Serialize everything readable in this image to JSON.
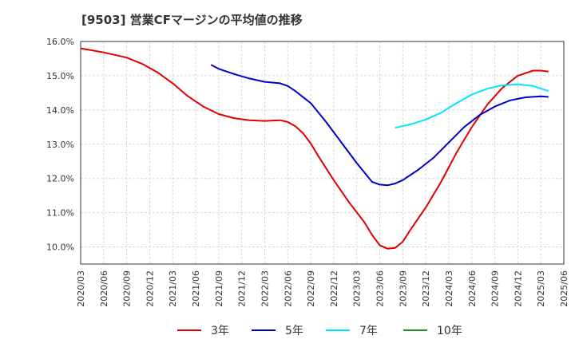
{
  "chart_data": {
    "type": "line",
    "title": "[9503]  営業CFマージンの平均値の推移",
    "xlabel": "",
    "ylabel": "",
    "ylim": [
      9.5,
      16.0
    ],
    "y_ticks": [
      "10.0%",
      "11.0%",
      "12.0%",
      "13.0%",
      "14.0%",
      "15.0%",
      "16.0%"
    ],
    "y_tick_values": [
      10,
      11,
      12,
      13,
      14,
      15,
      16
    ],
    "x_ticks": [
      "2020/03",
      "2020/06",
      "2020/09",
      "2020/12",
      "2021/03",
      "2021/06",
      "2021/09",
      "2021/12",
      "2022/03",
      "2022/06",
      "2022/09",
      "2022/12",
      "2023/03",
      "2023/06",
      "2023/09",
      "2023/12",
      "2024/03",
      "2024/06",
      "2024/09",
      "2024/12",
      "2025/03",
      "2025/06"
    ],
    "x_tick_values": [
      0,
      3,
      6,
      9,
      12,
      15,
      18,
      21,
      24,
      27,
      30,
      33,
      36,
      39,
      42,
      45,
      48,
      51,
      54,
      57,
      60,
      63
    ],
    "grid": true,
    "legend_position": "bottom",
    "series": [
      {
        "name": "3年",
        "color": "#e00000",
        "points": [
          [
            0,
            15.8
          ],
          [
            3,
            15.68
          ],
          [
            6,
            15.53
          ],
          [
            8,
            15.35
          ],
          [
            10,
            15.1
          ],
          [
            12,
            14.78
          ],
          [
            14,
            14.4
          ],
          [
            16,
            14.1
          ],
          [
            18,
            13.88
          ],
          [
            20,
            13.76
          ],
          [
            22,
            13.7
          ],
          [
            24,
            13.68
          ],
          [
            26,
            13.7
          ],
          [
            27,
            13.65
          ],
          [
            28,
            13.52
          ],
          [
            29,
            13.32
          ],
          [
            30,
            13.02
          ],
          [
            31,
            12.65
          ],
          [
            33,
            11.95
          ],
          [
            35,
            11.3
          ],
          [
            37,
            10.72
          ],
          [
            38,
            10.35
          ],
          [
            39,
            10.05
          ],
          [
            40,
            9.95
          ],
          [
            41,
            9.97
          ],
          [
            42,
            10.15
          ],
          [
            43,
            10.5
          ],
          [
            45,
            11.15
          ],
          [
            47,
            11.9
          ],
          [
            49,
            12.75
          ],
          [
            51,
            13.5
          ],
          [
            53,
            14.15
          ],
          [
            55,
            14.65
          ],
          [
            57,
            15.0
          ],
          [
            59,
            15.15
          ],
          [
            60,
            15.15
          ],
          [
            61,
            15.12
          ]
        ]
      },
      {
        "name": "5年",
        "color": "#0000cc",
        "points": [
          [
            17,
            15.32
          ],
          [
            18,
            15.2
          ],
          [
            20,
            15.05
          ],
          [
            22,
            14.92
          ],
          [
            24,
            14.82
          ],
          [
            26,
            14.78
          ],
          [
            27,
            14.7
          ],
          [
            28,
            14.55
          ],
          [
            30,
            14.2
          ],
          [
            32,
            13.65
          ],
          [
            34,
            13.05
          ],
          [
            36,
            12.45
          ],
          [
            38,
            11.9
          ],
          [
            39,
            11.82
          ],
          [
            40,
            11.8
          ],
          [
            41,
            11.85
          ],
          [
            42,
            11.95
          ],
          [
            44,
            12.25
          ],
          [
            46,
            12.6
          ],
          [
            48,
            13.05
          ],
          [
            50,
            13.5
          ],
          [
            52,
            13.85
          ],
          [
            54,
            14.1
          ],
          [
            56,
            14.28
          ],
          [
            58,
            14.37
          ],
          [
            60,
            14.4
          ],
          [
            61,
            14.38
          ]
        ]
      },
      {
        "name": "7年",
        "color": "#00e5ff",
        "points": [
          [
            41,
            13.48
          ],
          [
            43,
            13.58
          ],
          [
            45,
            13.72
          ],
          [
            47,
            13.92
          ],
          [
            49,
            14.2
          ],
          [
            51,
            14.45
          ],
          [
            53,
            14.62
          ],
          [
            55,
            14.72
          ],
          [
            57,
            14.75
          ],
          [
            59,
            14.7
          ],
          [
            61,
            14.55
          ]
        ]
      },
      {
        "name": "10年",
        "color": "#228b22",
        "points": []
      }
    ]
  }
}
